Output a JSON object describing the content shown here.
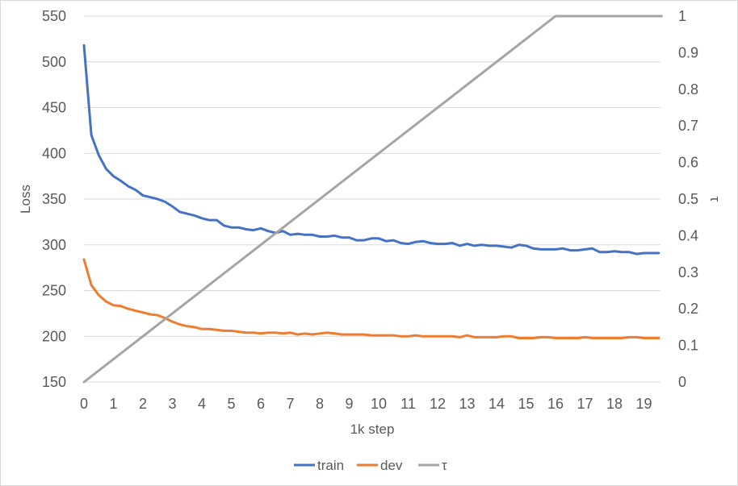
{
  "chart_data": {
    "type": "line",
    "xlabel": "1k step",
    "ylabel": "Loss",
    "y2label": "τ",
    "xlim": [
      0,
      19.6
    ],
    "ylim": [
      150,
      550
    ],
    "y2lim": [
      0,
      1
    ],
    "xticks": [
      "0",
      "1",
      "2",
      "3",
      "4",
      "5",
      "6",
      "7",
      "8",
      "9",
      "10",
      "11",
      "12",
      "13",
      "14",
      "15",
      "16",
      "17",
      "18",
      "19"
    ],
    "yticks": [
      "150",
      "200",
      "250",
      "300",
      "350",
      "400",
      "450",
      "500",
      "550"
    ],
    "y2ticks": [
      "0",
      "0.1",
      "0.2",
      "0.3",
      "0.4",
      "0.5",
      "0.6",
      "0.7",
      "0.8",
      "0.9",
      "1"
    ],
    "grid": true,
    "legend_position": "bottom",
    "series": [
      {
        "name": "train",
        "axis": "left",
        "color": "#4472C4",
        "x": [
          0,
          0.25,
          0.5,
          0.75,
          1,
          1.25,
          1.5,
          1.75,
          2,
          2.25,
          2.5,
          2.75,
          3,
          3.25,
          3.5,
          3.75,
          4,
          4.25,
          4.5,
          4.75,
          5,
          5.25,
          5.5,
          5.75,
          6,
          6.25,
          6.5,
          6.75,
          7,
          7.25,
          7.5,
          7.75,
          8,
          8.25,
          8.5,
          8.75,
          9,
          9.25,
          9.5,
          9.75,
          10,
          10.25,
          10.5,
          10.75,
          11,
          11.25,
          11.5,
          11.75,
          12,
          12.25,
          12.5,
          12.75,
          13,
          13.25,
          13.5,
          13.75,
          14,
          14.25,
          14.5,
          14.75,
          15,
          15.25,
          15.5,
          15.75,
          16,
          16.25,
          16.5,
          16.75,
          17,
          17.25,
          17.5,
          17.75,
          18,
          18.25,
          18.5,
          18.75,
          19,
          19.25,
          19.5
        ],
        "values": [
          518,
          420,
          398,
          383,
          375,
          370,
          364,
          360,
          354,
          352,
          350,
          347,
          342,
          336,
          334,
          332,
          329,
          327,
          327,
          321,
          319,
          319,
          317,
          316,
          318,
          315,
          313,
          315,
          311,
          312,
          311,
          311,
          309,
          309,
          310,
          308,
          308,
          305,
          305,
          307,
          307,
          304,
          305,
          302,
          301,
          303,
          304,
          302,
          301,
          301,
          302,
          299,
          301,
          299,
          300,
          299,
          299,
          298,
          297,
          300,
          299,
          296,
          295,
          295,
          295,
          296,
          294,
          294,
          295,
          296,
          292,
          292,
          293,
          292,
          292,
          290,
          291,
          291,
          291
        ]
      },
      {
        "name": "dev",
        "axis": "left",
        "color": "#ED7D31",
        "x": [
          0,
          0.25,
          0.5,
          0.75,
          1,
          1.25,
          1.5,
          1.75,
          2,
          2.25,
          2.5,
          2.75,
          3,
          3.25,
          3.5,
          3.75,
          4,
          4.25,
          4.5,
          4.75,
          5,
          5.25,
          5.5,
          5.75,
          6,
          6.25,
          6.5,
          6.75,
          7,
          7.25,
          7.5,
          7.75,
          8,
          8.25,
          8.5,
          8.75,
          9,
          9.25,
          9.5,
          9.75,
          10,
          10.25,
          10.5,
          10.75,
          11,
          11.25,
          11.5,
          11.75,
          12,
          12.25,
          12.5,
          12.75,
          13,
          13.25,
          13.5,
          13.75,
          14,
          14.25,
          14.5,
          14.75,
          15,
          15.25,
          15.5,
          15.75,
          16,
          16.25,
          16.5,
          16.75,
          17,
          17.25,
          17.5,
          17.75,
          18,
          18.25,
          18.5,
          18.75,
          19,
          19.25,
          19.5
        ],
        "values": [
          284,
          256,
          245,
          238,
          234,
          233,
          230,
          228,
          226,
          224,
          223,
          220,
          216,
          213,
          211,
          210,
          208,
          208,
          207,
          206,
          206,
          205,
          204,
          204,
          203,
          204,
          204,
          203,
          204,
          202,
          203,
          202,
          203,
          204,
          203,
          202,
          202,
          202,
          202,
          201,
          201,
          201,
          201,
          200,
          200,
          201,
          200,
          200,
          200,
          200,
          200,
          199,
          201,
          199,
          199,
          199,
          199,
          200,
          200,
          198,
          198,
          198,
          199,
          199,
          198,
          198,
          198,
          198,
          199,
          198,
          198,
          198,
          198,
          198,
          199,
          199,
          198,
          198,
          198
        ]
      },
      {
        "name": "τ",
        "axis": "right",
        "color": "#A5A5A5",
        "x": [
          0,
          16,
          19.6
        ],
        "values": [
          0,
          1,
          1
        ]
      }
    ]
  }
}
